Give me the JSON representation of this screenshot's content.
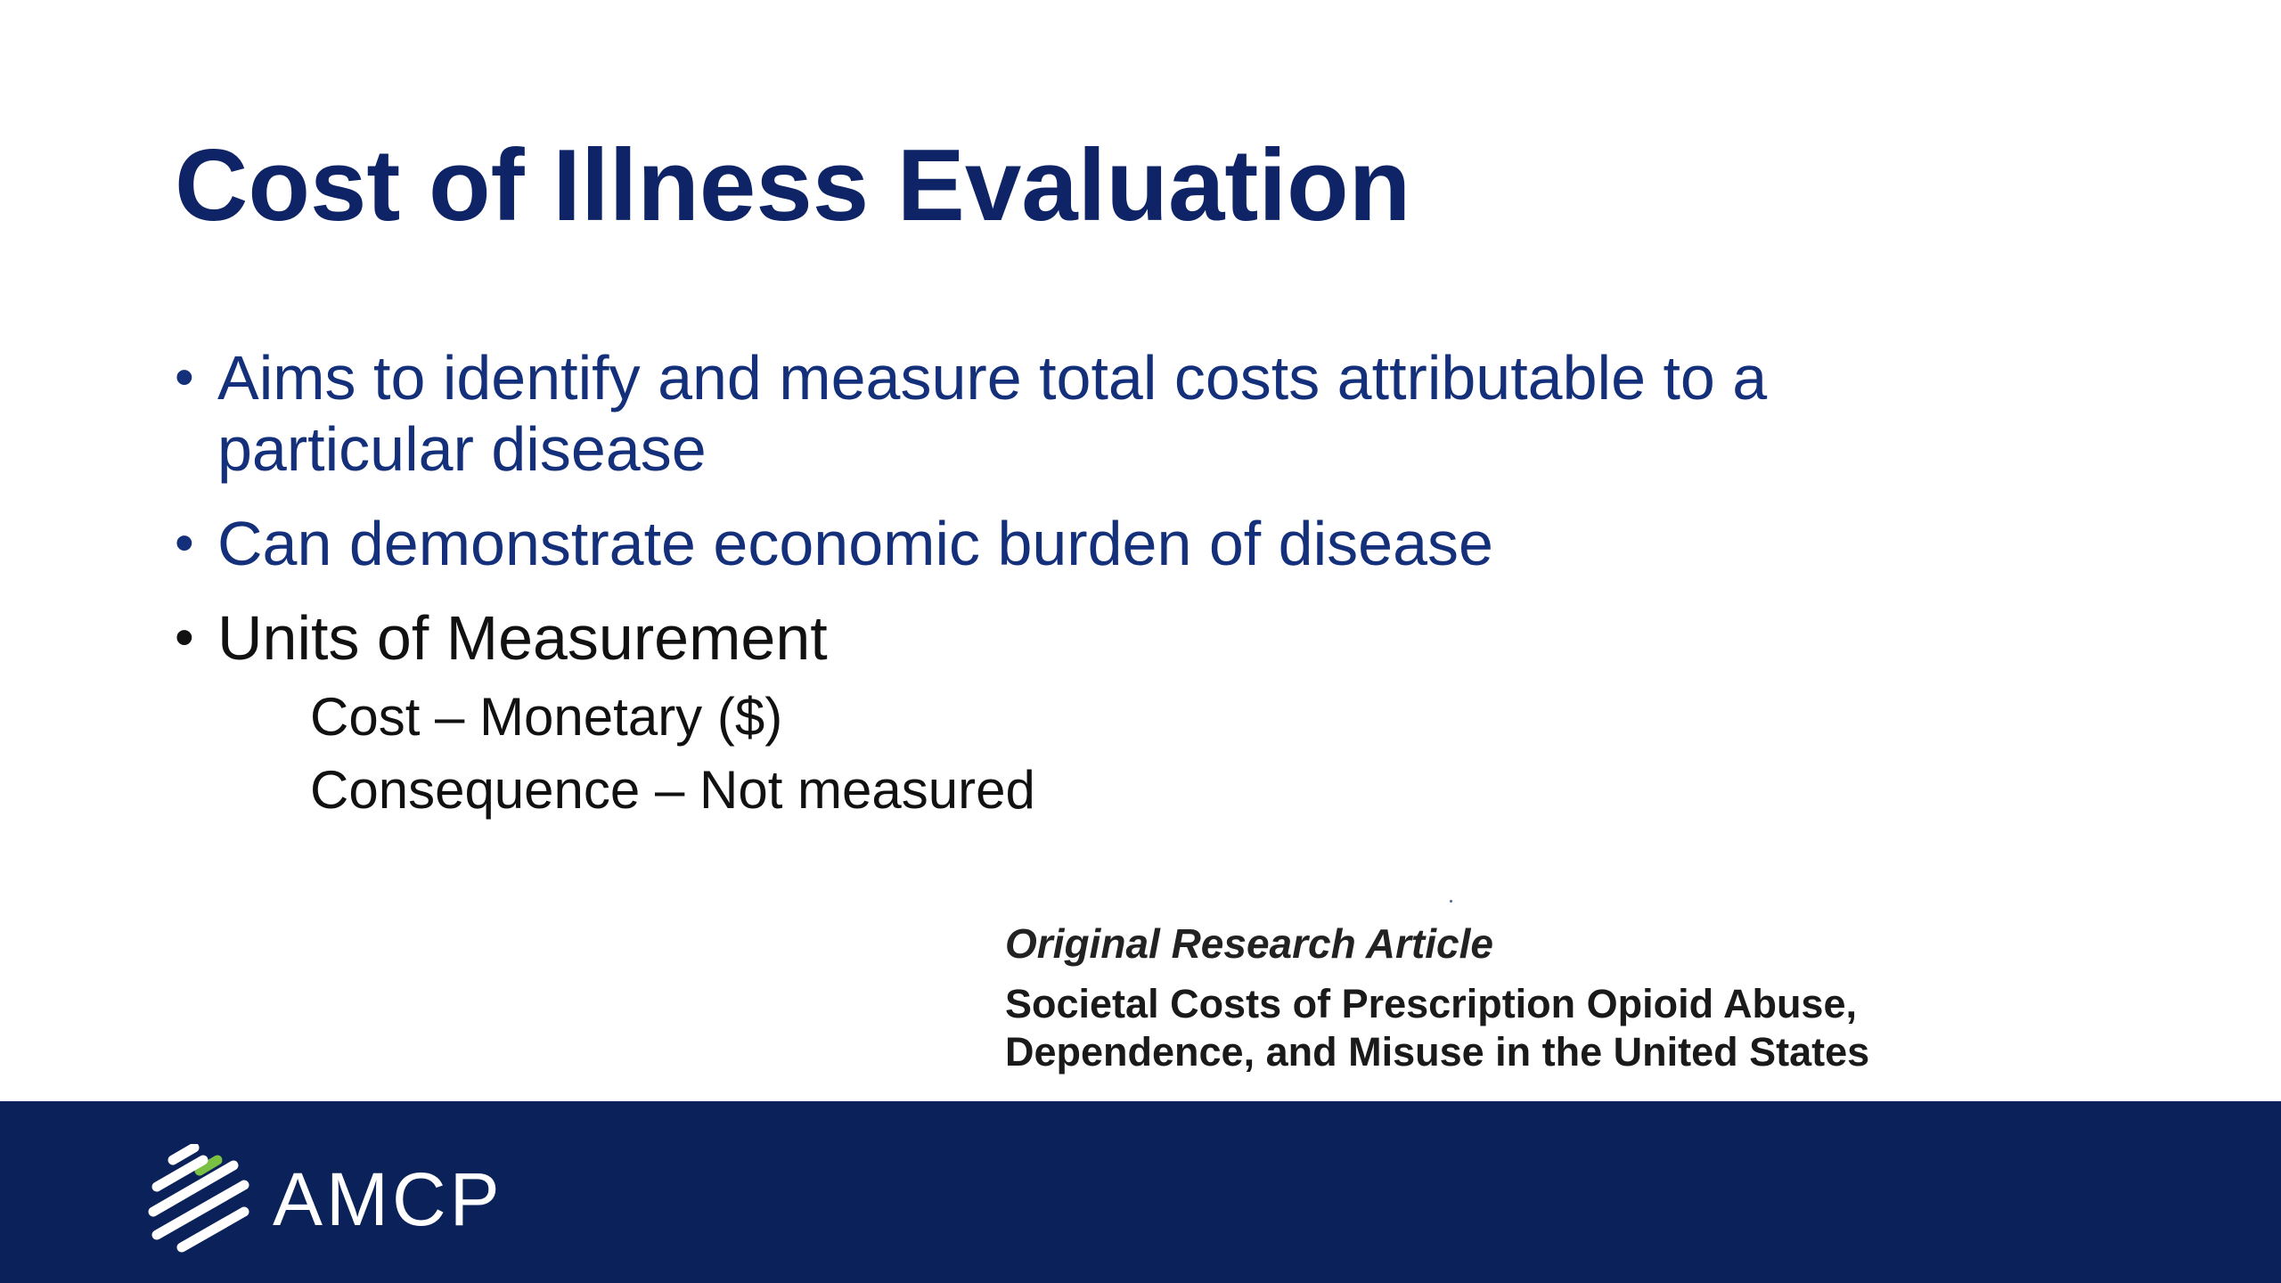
{
  "slide": {
    "title": "Cost of Illness Evaluation",
    "bullets": [
      {
        "text_line1": "Aims to identify and measure total costs attributable to a",
        "text_line2": "particular disease"
      },
      {
        "text": "Can demonstrate economic burden of disease"
      },
      {
        "text": "Units of Measurement",
        "subitems": [
          "Cost – Monetary ($)",
          "Consequence – Not measured"
        ]
      }
    ],
    "bullet_glyph": "•",
    "article": {
      "kicker": "Original Research Article",
      "headline_line1": "Societal Costs of Prescription Opioid Abuse,",
      "headline_line2": "Dependence, and Misuse in the United States"
    }
  },
  "footer": {
    "logo_text": "AMCP",
    "logo_icon": "amcp-stripes-icon"
  },
  "colors": {
    "title": "#0f2466",
    "bullet_blue": "#14307a",
    "footer_bg": "#0a2159",
    "logo_accent": "#7ac143"
  }
}
